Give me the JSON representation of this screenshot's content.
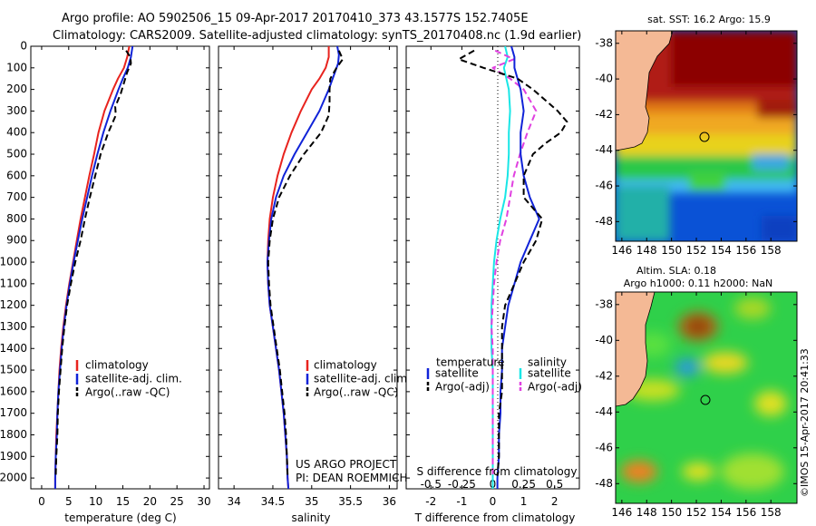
{
  "header": {
    "line1": "Argo profile: AO 5902506_15 09-Apr-2017 20170410_373 43.1577S 152.7405E",
    "line2": "Climatology: CARS2009. Satellite-adjusted climatology: synTS_20170408.nc (1.9d earlier)"
  },
  "depth_ticks": [
    "0",
    "100",
    "200",
    "300",
    "400",
    "500",
    "600",
    "700",
    "800",
    "900",
    "1000",
    "1100",
    "1200",
    "1300",
    "1400",
    "1500",
    "1600",
    "1700",
    "1800",
    "1900",
    "2000"
  ],
  "colors": {
    "climatology": "#e8231e",
    "satellite": "#1023d8",
    "argo": "#000000",
    "cyan": "#19e6e6",
    "magenta": "#e040e0"
  },
  "panels": {
    "temperature": {
      "xlabel": "temperature (deg C)",
      "xticks": [
        "0",
        "5",
        "10",
        "15",
        "20",
        "25",
        "30"
      ],
      "legend": [
        "climatology",
        "satellite-adj. clim.",
        "Argo(..raw -QC)"
      ]
    },
    "salinity": {
      "xlabel": "salinity",
      "xticks": [
        "34",
        "34.5",
        "35",
        "35.5",
        "36"
      ],
      "legend": [
        "climatology",
        "satellite-adj. clim.",
        "Argo(..raw -QC)"
      ],
      "credit1": "US ARGO PROJECT",
      "credit2": "PI: DEAN ROEMMICH"
    },
    "difference": {
      "xlabel": "T difference from climatology",
      "top_label": "S difference from climatology",
      "t_ticks": [
        "-2",
        "-1",
        "0",
        "1",
        "2"
      ],
      "s_ticks": [
        "-0.5",
        "-0.25",
        "0",
        "0.25",
        "0.5"
      ],
      "legend_temp_title": "temperature",
      "legend_sal_title": "salinity",
      "legend_entries": [
        "satellite",
        "Argo(-adj)",
        "satellite",
        "Argo(-adj)"
      ]
    }
  },
  "maps": {
    "sst": {
      "title": "sat. SST: 16.2 Argo: 15.9",
      "yticks": [
        "-38",
        "-40",
        "-42",
        "-44",
        "-46",
        "-48"
      ],
      "xticks": [
        "146",
        "148",
        "150",
        "152",
        "154",
        "156",
        "158"
      ]
    },
    "sla": {
      "title1": "Altim. SLA: 0.18",
      "title2": "Argo h1000: 0.11 h2000: NaN",
      "yticks": [
        "-38",
        "-40",
        "-42",
        "-44",
        "-46",
        "-48"
      ],
      "xticks": [
        "146",
        "148",
        "150",
        "152",
        "154",
        "156",
        "158"
      ]
    }
  },
  "watermark": "©IMOS 15-Apr-2017 20:41:33",
  "chart_data": [
    {
      "type": "line",
      "xlabel": "temperature (deg C)",
      "ylabel": "",
      "xlim": [
        -2,
        31
      ],
      "ylim": [
        2050,
        0
      ],
      "series": [
        {
          "name": "climatology",
          "color": "#e8231e",
          "depth": [
            0,
            50,
            100,
            150,
            200,
            300,
            400,
            500,
            600,
            700,
            800,
            900,
            1000,
            1100,
            1200,
            1300,
            1400,
            1500,
            1600,
            1700,
            1800,
            1900,
            2000,
            2050
          ],
          "values": [
            16.2,
            15.8,
            15.2,
            14.1,
            13.2,
            11.6,
            10.5,
            9.7,
            8.8,
            8.0,
            7.2,
            6.5,
            5.8,
            5.1,
            4.5,
            4.0,
            3.6,
            3.3,
            3.1,
            2.9,
            2.7,
            2.6,
            2.5,
            2.5
          ]
        },
        {
          "name": "satellite-adj. clim.",
          "color": "#1023d8",
          "depth": [
            0,
            50,
            100,
            150,
            200,
            300,
            400,
            500,
            600,
            700,
            800,
            900,
            1000,
            1100,
            1200,
            1300,
            1400,
            1500,
            1600,
            1700,
            1800,
            1900,
            2000,
            2050
          ],
          "values": [
            16.8,
            16.5,
            15.9,
            15.0,
            14.2,
            12.7,
            11.4,
            10.3,
            9.3,
            8.4,
            7.5,
            6.7,
            5.9,
            5.2,
            4.6,
            4.1,
            3.7,
            3.4,
            3.1,
            2.9,
            2.8,
            2.6,
            2.5,
            2.5
          ]
        },
        {
          "name": "Argo(..raw -QC)",
          "color": "#000000",
          "depth": [
            20,
            50,
            80,
            120,
            170,
            220,
            280,
            320,
            400,
            500,
            600,
            700,
            800,
            900,
            1000,
            1100,
            1200,
            1300,
            1400,
            1500,
            1600,
            1700,
            1800,
            1900,
            1990
          ],
          "values": [
            15.6,
            16.4,
            16.5,
            15.8,
            15.2,
            14.6,
            13.6,
            13.7,
            12.3,
            10.9,
            9.9,
            8.9,
            8.0,
            7.2,
            6.2,
            5.4,
            4.7,
            4.2,
            3.8,
            3.5,
            3.2,
            3.0,
            2.9,
            2.7,
            2.6
          ]
        }
      ]
    },
    {
      "type": "line",
      "xlabel": "salinity",
      "ylabel": "",
      "xlim": [
        33.8,
        36.1
      ],
      "ylim": [
        2050,
        0
      ],
      "series": [
        {
          "name": "climatology",
          "color": "#e8231e",
          "depth": [
            0,
            50,
            100,
            150,
            200,
            300,
            400,
            500,
            600,
            700,
            800,
            900,
            1000,
            1100,
            1200,
            1300,
            1400,
            1500,
            1600,
            1700,
            1800,
            1900,
            2000,
            2050
          ],
          "values": [
            35.22,
            35.22,
            35.18,
            35.1,
            35.0,
            34.86,
            34.74,
            34.64,
            34.56,
            34.5,
            34.46,
            34.44,
            34.43,
            34.44,
            34.46,
            34.5,
            34.54,
            34.58,
            34.61,
            34.64,
            34.66,
            34.68,
            34.69,
            34.7
          ]
        },
        {
          "name": "satellite-adj. clim.",
          "color": "#1023d8",
          "depth": [
            0,
            40,
            80,
            120,
            200,
            300,
            400,
            500,
            600,
            700,
            800,
            900,
            1000,
            1100,
            1200,
            1300,
            1400,
            1500,
            1600,
            1700,
            1800,
            1900,
            2000,
            2050
          ],
          "values": [
            35.33,
            35.35,
            35.34,
            35.3,
            35.22,
            35.1,
            34.94,
            34.78,
            34.64,
            34.54,
            34.48,
            34.45,
            34.43,
            34.44,
            34.46,
            34.5,
            34.54,
            34.58,
            34.61,
            34.64,
            34.66,
            34.68,
            34.69,
            34.7
          ]
        },
        {
          "name": "Argo(..raw -QC)",
          "color": "#000000",
          "depth": [
            20,
            60,
            100,
            150,
            200,
            260,
            320,
            400,
            500,
            600,
            700,
            800,
            900,
            1000,
            1100,
            1200,
            1300,
            1400,
            1500,
            1600,
            1700,
            1800,
            1900,
            1990
          ],
          "values": [
            35.35,
            35.4,
            35.32,
            35.24,
            35.23,
            35.23,
            35.22,
            35.12,
            34.9,
            34.72,
            34.58,
            34.5,
            34.46,
            34.44,
            34.45,
            34.47,
            34.51,
            34.55,
            34.59,
            34.62,
            34.65,
            34.67,
            34.68,
            34.69
          ]
        }
      ]
    },
    {
      "type": "line",
      "xlabel": "T difference from climatology",
      "ylabel": "",
      "xlim": [
        -2.8,
        2.8
      ],
      "ylim": [
        2050,
        0
      ],
      "series": [
        {
          "name": "satellite",
          "color": "#1023d8",
          "depth": [
            0,
            50,
            100,
            200,
            300,
            400,
            500,
            600,
            700,
            800,
            900,
            1000,
            1100,
            1200,
            1300,
            1400,
            1500,
            1600,
            1700,
            1800,
            1900,
            2000,
            2050
          ],
          "values": [
            0.6,
            0.7,
            0.7,
            0.9,
            1.0,
            0.9,
            0.9,
            1.0,
            1.2,
            1.5,
            1.2,
            0.9,
            0.7,
            0.5,
            0.4,
            0.3,
            0.3,
            0.25,
            0.25,
            0.2,
            0.2,
            0.15,
            0.15
          ]
        },
        {
          "name": "Argo(-adj)",
          "color": "#000000",
          "depth": [
            20,
            60,
            100,
            150,
            200,
            250,
            300,
            350,
            400,
            450,
            500,
            600,
            700,
            800,
            900,
            1000,
            1100,
            1200,
            1300,
            1400,
            1500,
            1600,
            1700,
            1800,
            1900,
            1990
          ],
          "values": [
            -0.6,
            -1.1,
            -0.3,
            0.8,
            1.3,
            1.7,
            2.1,
            2.4,
            2.2,
            1.7,
            1.3,
            1.0,
            1.0,
            1.6,
            1.4,
            1.0,
            0.7,
            0.4,
            0.3,
            0.3,
            0.3,
            0.3,
            0.2,
            0.2,
            0.2,
            0.15
          ]
        }
      ]
    },
    {
      "type": "line",
      "xlabel": "",
      "ylabel": "",
      "xlim": [
        -0.7,
        0.7
      ],
      "ylim": [
        2050,
        0
      ],
      "series": [
        {
          "name": "satellite",
          "color": "#19e6e6",
          "depth": [
            0,
            50,
            100,
            200,
            300,
            400,
            500,
            600,
            700,
            800,
            900,
            1000,
            1100,
            1200,
            1300,
            1400,
            1500,
            1600,
            1700,
            1800,
            1900,
            2000,
            2050
          ],
          "values": [
            0.1,
            0.12,
            0.09,
            0.13,
            0.14,
            0.13,
            0.13,
            0.12,
            0.1,
            0.06,
            0.03,
            0.01,
            0.0,
            -0.01,
            -0.01,
            -0.01,
            0.0,
            0.0,
            0.0,
            0.0,
            0.0,
            0.0,
            0.0
          ]
        },
        {
          "name": "Argo(-adj)",
          "color": "#e040e0",
          "depth": [
            20,
            60,
            100,
            150,
            200,
            300,
            400,
            500,
            600,
            700,
            800,
            900,
            1000,
            1100,
            1200,
            1300,
            1400,
            1500,
            1600,
            1700,
            1800,
            1900,
            1990
          ],
          "values": [
            0.02,
            0.17,
            0.0,
            0.14,
            0.25,
            0.35,
            0.28,
            0.22,
            0.17,
            0.14,
            0.11,
            0.06,
            0.03,
            0.01,
            0.0,
            -0.01,
            0.0,
            0.0,
            0.0,
            0.0,
            0.0,
            0.0,
            0.0
          ]
        }
      ]
    }
  ]
}
